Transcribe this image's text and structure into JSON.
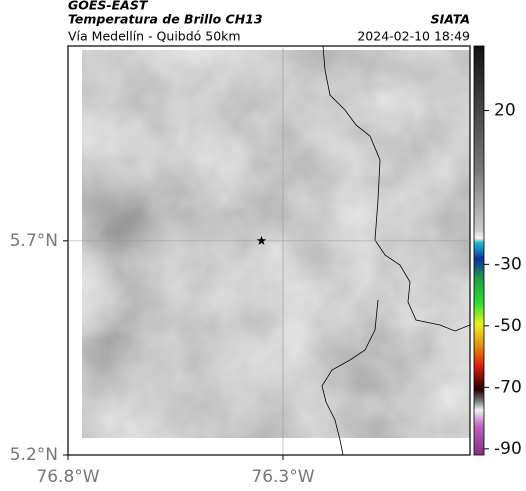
{
  "map": {
    "header": {
      "source": "GOES-EAST",
      "product": "Temperatura de Brillo CH13",
      "org": "SIATA",
      "route": "Vía Medellín - Quibdó 50km",
      "datetime": "2024-02-10 18:49"
    },
    "lonlim": [
      -76.8,
      -75.865
    ],
    "latlim": [
      5.2,
      6.155
    ],
    "lonticks": [
      {
        "value": -76.8,
        "label": "76.8°W"
      },
      {
        "value": -76.3,
        "label": "76.3°W"
      }
    ],
    "latticks": [
      {
        "value": 5.2,
        "label": "5.2°N"
      },
      {
        "value": 5.7,
        "label": "5.7°N"
      }
    ],
    "marker": {
      "lon": -76.35,
      "lat": 5.7
    },
    "colorbar": {
      "clim": [
        -92,
        41
      ],
      "ticks": [
        20,
        -30,
        -50,
        -70,
        -90
      ]
    }
  }
}
